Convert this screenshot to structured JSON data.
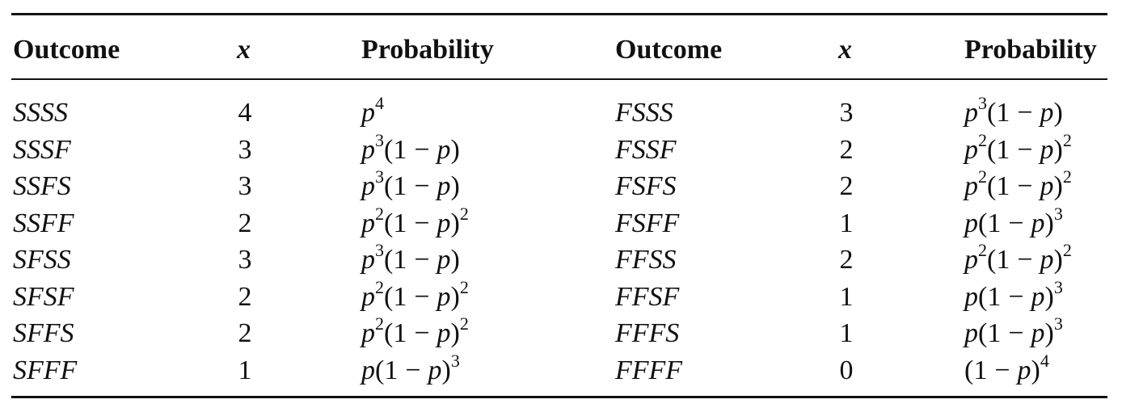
{
  "table": {
    "headers": {
      "outcome_left": "Outcome",
      "x_left": "x",
      "probability_left": "Probability",
      "outcome_right": "Outcome",
      "x_right": "x",
      "probability_right": "Probability"
    },
    "rows": [
      {
        "left": {
          "outcome": "SSSS",
          "x": "4",
          "p_exp": "4",
          "one_minus_p_exp": null
        },
        "right": {
          "outcome": "FSSS",
          "x": "3",
          "p_exp": "3",
          "one_minus_p_exp": ""
        }
      },
      {
        "left": {
          "outcome": "SSSF",
          "x": "3",
          "p_exp": "3",
          "one_minus_p_exp": ""
        },
        "right": {
          "outcome": "FSSF",
          "x": "2",
          "p_exp": "2",
          "one_minus_p_exp": "2"
        }
      },
      {
        "left": {
          "outcome": "SSFS",
          "x": "3",
          "p_exp": "3",
          "one_minus_p_exp": ""
        },
        "right": {
          "outcome": "FSFS",
          "x": "2",
          "p_exp": "2",
          "one_minus_p_exp": "2"
        }
      },
      {
        "left": {
          "outcome": "SSFF",
          "x": "2",
          "p_exp": "2",
          "one_minus_p_exp": "2"
        },
        "right": {
          "outcome": "FSFF",
          "x": "1",
          "p_exp": "",
          "one_minus_p_exp": "3"
        }
      },
      {
        "left": {
          "outcome": "SFSS",
          "x": "3",
          "p_exp": "3",
          "one_minus_p_exp": ""
        },
        "right": {
          "outcome": "FFSS",
          "x": "2",
          "p_exp": "2",
          "one_minus_p_exp": "2"
        }
      },
      {
        "left": {
          "outcome": "SFSF",
          "x": "2",
          "p_exp": "2",
          "one_minus_p_exp": "2"
        },
        "right": {
          "outcome": "FFSF",
          "x": "1",
          "p_exp": "",
          "one_minus_p_exp": "3"
        }
      },
      {
        "left": {
          "outcome": "SFFS",
          "x": "2",
          "p_exp": "2",
          "one_minus_p_exp": "2"
        },
        "right": {
          "outcome": "FFFS",
          "x": "1",
          "p_exp": "",
          "one_minus_p_exp": "3"
        }
      },
      {
        "left": {
          "outcome": "SFFF",
          "x": "1",
          "p_exp": "",
          "one_minus_p_exp": "3"
        },
        "right": {
          "outcome": "FFFF",
          "x": "0",
          "p_exp": null,
          "one_minus_p_exp": "4"
        }
      }
    ],
    "symbols": {
      "p": "p",
      "one": "1",
      "minus": "−",
      "open_paren": "(",
      "close_paren": ")"
    }
  }
}
